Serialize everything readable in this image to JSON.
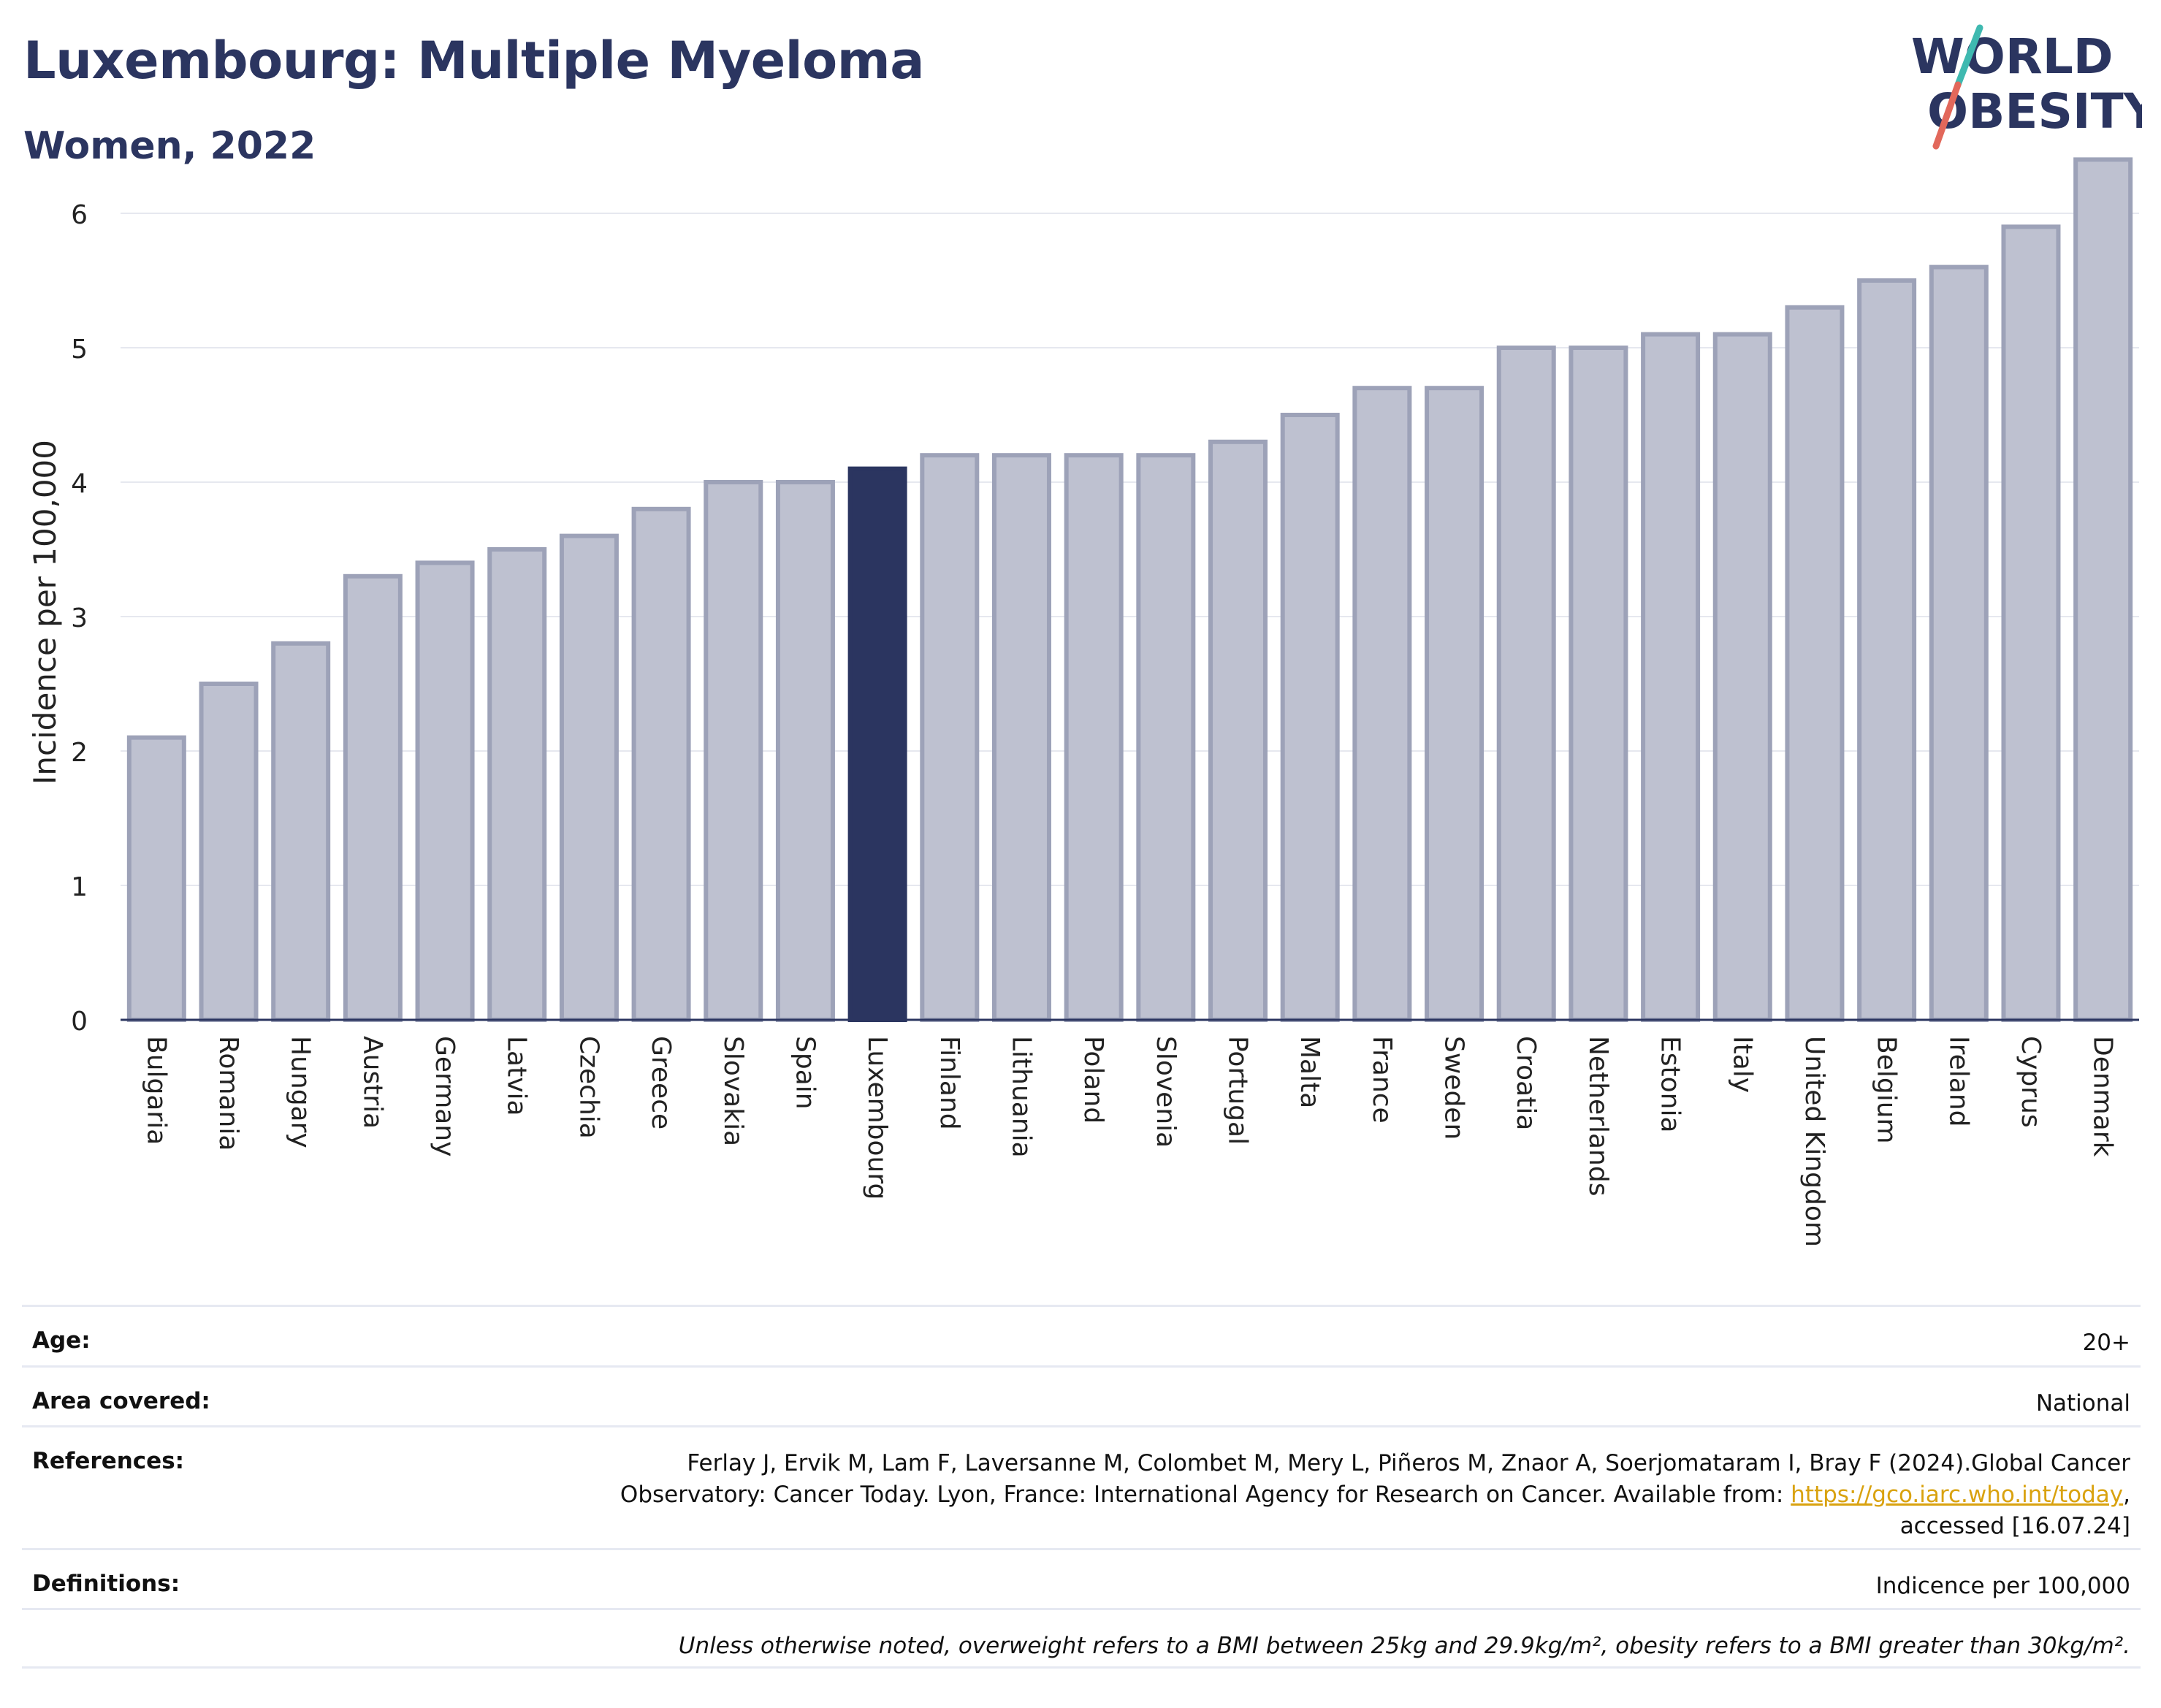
{
  "header": {
    "title": "Luxembourg: Multiple Myeloma",
    "subtitle": "Women, 2022",
    "logo_line1": "WORLD",
    "logo_line2": "OBESITY"
  },
  "colors": {
    "title": "#2b3560",
    "bar_default": "#bec1d0",
    "bar_default_border": "#9da2b8",
    "bar_highlight": "#2b3560",
    "logo_slash_teal": "#3fb9b0",
    "logo_slash_red": "#e2685b",
    "link": "#d9a20f"
  },
  "chart_data": {
    "type": "bar",
    "ylabel": "Incidence per 100,000",
    "xlabel": "",
    "ylim": [
      0,
      6.5
    ],
    "yticks": [
      0,
      1,
      2,
      3,
      4,
      5,
      6
    ],
    "grid": true,
    "highlight": "Luxembourg",
    "categories": [
      "Bulgaria",
      "Romania",
      "Hungary",
      "Austria",
      "Germany",
      "Latvia",
      "Czechia",
      "Greece",
      "Slovakia",
      "Spain",
      "Luxembourg",
      "Finland",
      "Lithuania",
      "Poland",
      "Slovenia",
      "Portugal",
      "Malta",
      "France",
      "Sweden",
      "Croatia",
      "Netherlands",
      "Estonia",
      "Italy",
      "United Kingdom",
      "Belgium",
      "Ireland",
      "Cyprus",
      "Denmark"
    ],
    "values": [
      2.1,
      2.5,
      2.8,
      3.3,
      3.4,
      3.5,
      3.6,
      3.8,
      4.0,
      4.0,
      4.1,
      4.2,
      4.2,
      4.2,
      4.2,
      4.3,
      4.5,
      4.7,
      4.7,
      5.0,
      5.0,
      5.1,
      5.1,
      5.3,
      5.5,
      5.6,
      5.9,
      6.4
    ]
  },
  "info": {
    "age_label": "Age:",
    "age_value": "20+",
    "area_label": "Area covered:",
    "area_value": "National",
    "references_label": "References:",
    "references_line1": "Ferlay J, Ervik M, Lam F, Laversanne M, Colombet M, Mery L, Piñeros M, Znaor A, Soerjomataram I, Bray F (2024).Global Cancer",
    "references_line2_pre": "Observatory: Cancer Today. Lyon, France: International Agency for Research on Cancer. Available from: ",
    "references_link": "https://gco.iarc.who.int/today",
    "references_line2_post": ",",
    "references_line3": "accessed [16.07.24]",
    "definitions_label": "Definitions:",
    "definitions_value": "Indicence per 100,000",
    "note": "Unless otherwise noted, overweight refers to a BMI between 25kg and 29.9kg/m², obesity refers to a BMI greater than 30kg/m²."
  }
}
